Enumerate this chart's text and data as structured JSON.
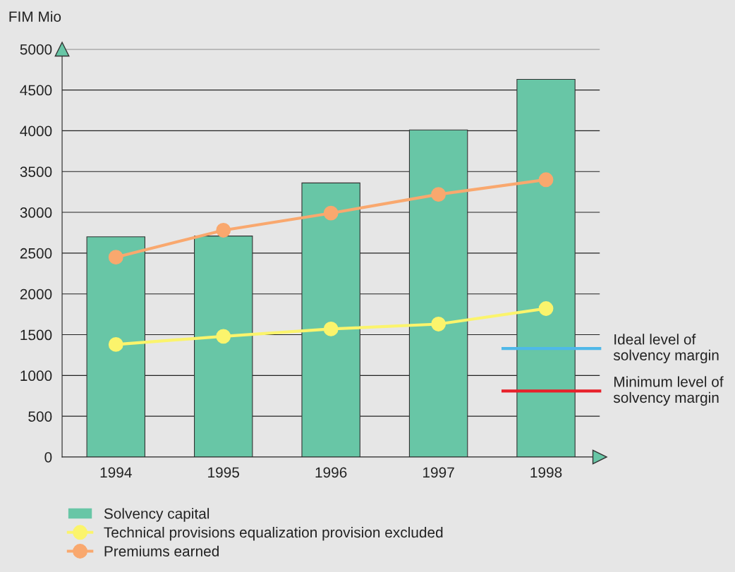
{
  "chart_data": {
    "type": "bar",
    "ylabel": "FIM Mio",
    "categories": [
      "1994",
      "1995",
      "1996",
      "1997",
      "1998"
    ],
    "series": [
      {
        "name": "Solvency capital",
        "color": "#68c6a6",
        "values": [
          2700,
          2710,
          3360,
          4010,
          4630
        ]
      },
      {
        "name": "Technical provisions equalization provision excluded",
        "type": "line",
        "color": "#fbf46c",
        "values": [
          1380,
          1480,
          1570,
          1630,
          1820
        ]
      },
      {
        "name": "Premiums earned",
        "type": "line",
        "color": "#f9a86e",
        "values": [
          2450,
          2780,
          2990,
          3220,
          3400
        ]
      }
    ],
    "ylim": [
      0,
      5000
    ],
    "yticks": [
      0,
      500,
      1000,
      1500,
      2000,
      2500,
      3000,
      3500,
      4000,
      4500,
      5000
    ],
    "grid": "y",
    "legend": "bottom",
    "marker": "circle",
    "line_style": "solid",
    "ref_lines": [
      {
        "axis": "y",
        "value": 1330,
        "label": "Ideal level of\nsolvency margin",
        "color": "#4fb8e8"
      },
      {
        "axis": "y",
        "value": 810,
        "label": "Minimum level of\nsolvency margin",
        "color": "#e8202a"
      }
    ]
  }
}
